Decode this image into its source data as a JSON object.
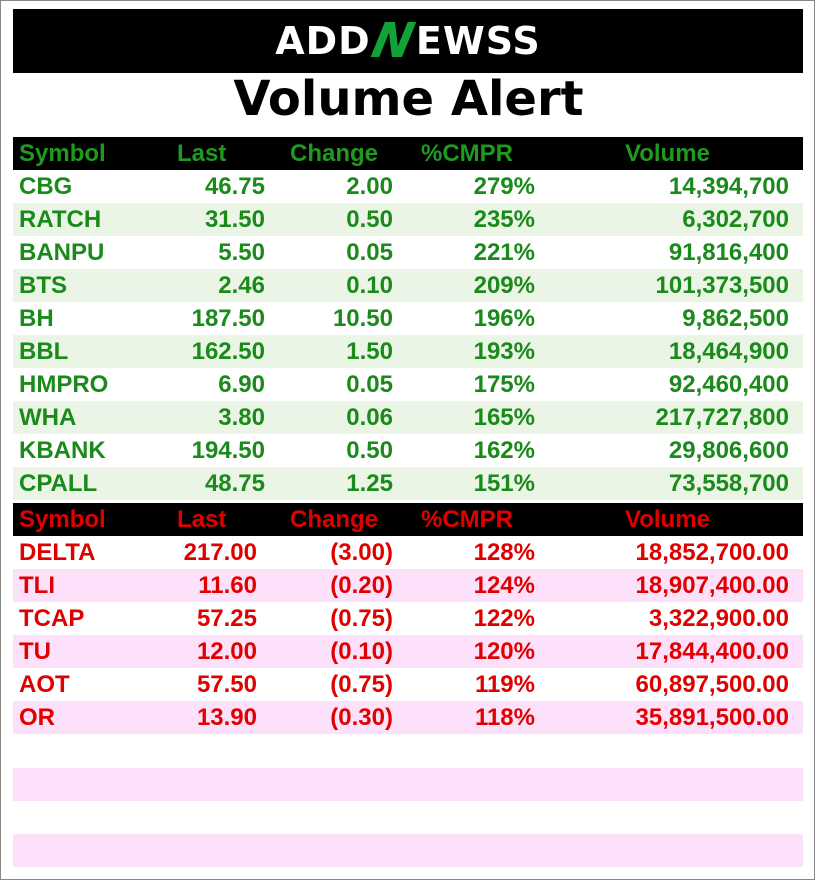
{
  "brand": {
    "logo_left": "ADD",
    "logo_mid": "N",
    "logo_right": "EWSS"
  },
  "title": "Volume Alert",
  "headers": {
    "symbol": "Symbol",
    "last": "Last",
    "change": "Change",
    "cmpr": "%CMPR",
    "volume": "Volume"
  },
  "gainers": [
    {
      "symbol": "CBG",
      "last": "46.75",
      "change": "2.00",
      "cmpr": "279%",
      "volume": "14,394,700"
    },
    {
      "symbol": "RATCH",
      "last": "31.50",
      "change": "0.50",
      "cmpr": "235%",
      "volume": "6,302,700"
    },
    {
      "symbol": "BANPU",
      "last": "5.50",
      "change": "0.05",
      "cmpr": "221%",
      "volume": "91,816,400"
    },
    {
      "symbol": "BTS",
      "last": "2.46",
      "change": "0.10",
      "cmpr": "209%",
      "volume": "101,373,500"
    },
    {
      "symbol": "BH",
      "last": "187.50",
      "change": "10.50",
      "cmpr": "196%",
      "volume": "9,862,500"
    },
    {
      "symbol": "BBL",
      "last": "162.50",
      "change": "1.50",
      "cmpr": "193%",
      "volume": "18,464,900"
    },
    {
      "symbol": "HMPRO",
      "last": "6.90",
      "change": "0.05",
      "cmpr": "175%",
      "volume": "92,460,400"
    },
    {
      "symbol": "WHA",
      "last": "3.80",
      "change": "0.06",
      "cmpr": "165%",
      "volume": "217,727,800"
    },
    {
      "symbol": "KBANK",
      "last": "194.50",
      "change": "0.50",
      "cmpr": "162%",
      "volume": "29,806,600"
    },
    {
      "symbol": "CPALL",
      "last": "48.75",
      "change": "1.25",
      "cmpr": "151%",
      "volume": "73,558,700"
    }
  ],
  "losers": [
    {
      "symbol": "DELTA",
      "last": "217.00",
      "change": "(3.00)",
      "cmpr": "128%",
      "volume": "18,852,700.00"
    },
    {
      "symbol": "TLI",
      "last": "11.60",
      "change": "(0.20)",
      "cmpr": "124%",
      "volume": "18,907,400.00"
    },
    {
      "symbol": "TCAP",
      "last": "57.25",
      "change": "(0.75)",
      "cmpr": "122%",
      "volume": "3,322,900.00"
    },
    {
      "symbol": "TU",
      "last": "12.00",
      "change": "(0.10)",
      "cmpr": "120%",
      "volume": "17,844,400.00"
    },
    {
      "symbol": "AOT",
      "last": "57.50",
      "change": "(0.75)",
      "cmpr": "119%",
      "volume": "60,897,500.00"
    },
    {
      "symbol": "OR",
      "last": "13.90",
      "change": "(0.30)",
      "cmpr": "118%",
      "volume": "35,891,500.00"
    }
  ],
  "colors": {
    "gain": "#1a8a1a",
    "loss": "#e00000",
    "gain_stripe": "#eaf5e6",
    "loss_stripe": "#fde1fb"
  }
}
